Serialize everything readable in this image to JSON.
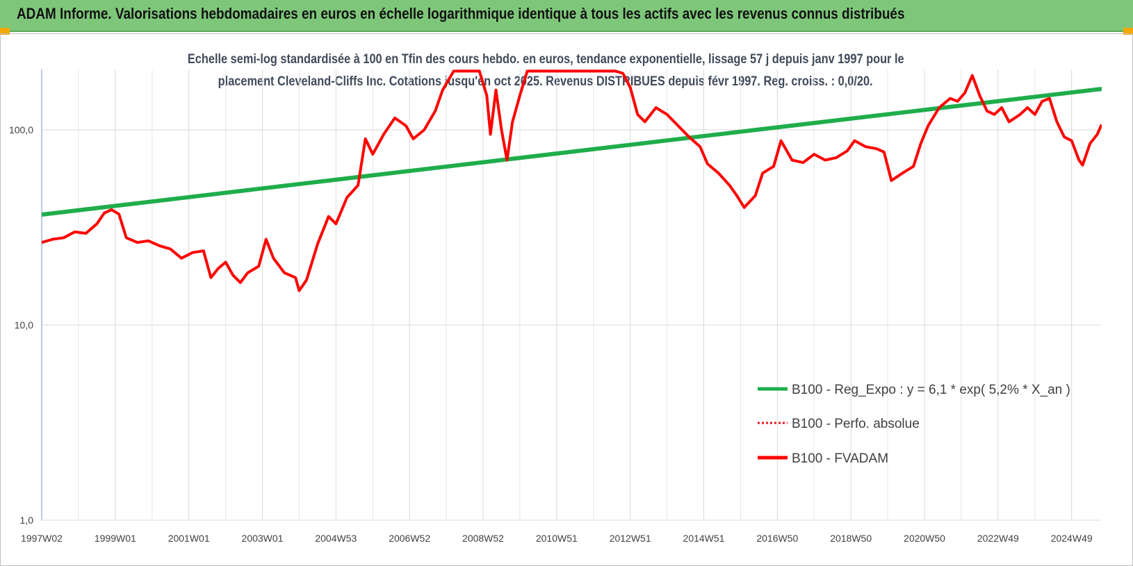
{
  "header": {
    "title": "ADAM Informe. Valorisations hebdomadaires en euros en échelle logarithmique identique à tous les actifs avec les revenus connus distribués"
  },
  "chart_data": {
    "type": "line",
    "title_line1": "Echelle semi-log standardisée à 100 en Tfin des cours hebdo. en euros, tendance exponentielle, lissage 57 j depuis janv 1997 pour le",
    "title_line2": "placement Cleveland-Cliffs Inc. Cotations jusqu'en oct 2025. Revenus DISTRIBUES depuis févr 1997. Reg. croiss. : 0,0/20.",
    "y_scale": "log",
    "ylim": [
      1,
      200
    ],
    "y_ticks": [
      {
        "value": 100,
        "label": "100,0"
      },
      {
        "value": 10,
        "label": "10,0"
      },
      {
        "value": 1,
        "label": "1,0"
      }
    ],
    "x_range": [
      1997.0,
      2025.8
    ],
    "x_ticks": [
      {
        "x": 1997.0,
        "label": "1997W02"
      },
      {
        "x": 1999.0,
        "label": "1999W01"
      },
      {
        "x": 2001.0,
        "label": "2001W01"
      },
      {
        "x": 2003.0,
        "label": "2003W01"
      },
      {
        "x": 2005.0,
        "label": "2004W53"
      },
      {
        "x": 2007.0,
        "label": "2006W52"
      },
      {
        "x": 2009.0,
        "label": "2008W52"
      },
      {
        "x": 2011.0,
        "label": "2010W51"
      },
      {
        "x": 2013.0,
        "label": "2012W51"
      },
      {
        "x": 2015.0,
        "label": "2014W51"
      },
      {
        "x": 2017.0,
        "label": "2016W50"
      },
      {
        "x": 2019.0,
        "label": "2018W50"
      },
      {
        "x": 2021.0,
        "label": "2020W50"
      },
      {
        "x": 2023.0,
        "label": "2022W49"
      },
      {
        "x": 2025.0,
        "label": "2024W49"
      }
    ],
    "grid": "vertical and horizontal",
    "legend_position": "right",
    "series": [
      {
        "name": "B100 - Reg_Expo : y = 6,1 * exp( 5,2% *  X_an )",
        "style": "solid",
        "color": "#1fad4b",
        "points": [
          [
            1997.0,
            36.8
          ],
          [
            2025.8,
            162.0
          ]
        ]
      },
      {
        "name": "B100 - Perfo. absolue",
        "style": "dotted",
        "color": "#e8141e",
        "points": []
      },
      {
        "name": "B100 - FVADAM",
        "style": "solid",
        "color": "#ff0000",
        "points": [
          [
            1997.0,
            26.5
          ],
          [
            1997.3,
            27.5
          ],
          [
            1997.6,
            28.0
          ],
          [
            1997.9,
            30.0
          ],
          [
            1998.2,
            29.5
          ],
          [
            1998.5,
            33.0
          ],
          [
            1998.7,
            37.5
          ],
          [
            1998.9,
            39.0
          ],
          [
            1999.1,
            37.0
          ],
          [
            1999.3,
            28.0
          ],
          [
            1999.6,
            26.5
          ],
          [
            1999.9,
            27.0
          ],
          [
            2000.2,
            25.5
          ],
          [
            2000.5,
            24.5
          ],
          [
            2000.8,
            22.0
          ],
          [
            2001.1,
            23.5
          ],
          [
            2001.4,
            24.0
          ],
          [
            2001.6,
            17.5
          ],
          [
            2001.8,
            19.5
          ],
          [
            2002.0,
            21.0
          ],
          [
            2002.2,
            18.0
          ],
          [
            2002.4,
            16.5
          ],
          [
            2002.6,
            18.5
          ],
          [
            2002.9,
            20.0
          ],
          [
            2003.1,
            27.5
          ],
          [
            2003.3,
            22.0
          ],
          [
            2003.6,
            18.5
          ],
          [
            2003.9,
            17.5
          ],
          [
            2004.0,
            15.0
          ],
          [
            2004.2,
            17.0
          ],
          [
            2004.5,
            26.0
          ],
          [
            2004.8,
            36.0
          ],
          [
            2005.0,
            33.0
          ],
          [
            2005.3,
            45.0
          ],
          [
            2005.6,
            52.0
          ],
          [
            2005.8,
            90.0
          ],
          [
            2006.0,
            75.0
          ],
          [
            2006.3,
            95.0
          ],
          [
            2006.6,
            115.0
          ],
          [
            2006.9,
            105.0
          ],
          [
            2007.1,
            90.0
          ],
          [
            2007.4,
            100.0
          ],
          [
            2007.7,
            125.0
          ],
          [
            2007.9,
            160.0
          ],
          [
            2008.2,
            200.0
          ],
          [
            2008.5,
            200.0
          ],
          [
            2008.9,
            200.0
          ],
          [
            2009.1,
            150.0
          ],
          [
            2009.2,
            95.0
          ],
          [
            2009.35,
            160.0
          ],
          [
            2009.5,
            100.0
          ],
          [
            2009.65,
            70.0
          ],
          [
            2009.8,
            110.0
          ],
          [
            2010.0,
            150.0
          ],
          [
            2010.2,
            200.0
          ],
          [
            2010.6,
            200.0
          ],
          [
            2012.6,
            200.0
          ],
          [
            2012.8,
            195.0
          ],
          [
            2013.0,
            165.0
          ],
          [
            2013.2,
            120.0
          ],
          [
            2013.4,
            110.0
          ],
          [
            2013.7,
            130.0
          ],
          [
            2014.0,
            120.0
          ],
          [
            2014.3,
            105.0
          ],
          [
            2014.6,
            92.0
          ],
          [
            2014.9,
            82.0
          ],
          [
            2015.1,
            67.0
          ],
          [
            2015.4,
            60.0
          ],
          [
            2015.7,
            52.0
          ],
          [
            2015.9,
            46.0
          ],
          [
            2016.1,
            40.0
          ],
          [
            2016.4,
            46.0
          ],
          [
            2016.6,
            60.0
          ],
          [
            2016.9,
            65.0
          ],
          [
            2017.1,
            88.0
          ],
          [
            2017.4,
            70.0
          ],
          [
            2017.7,
            68.0
          ],
          [
            2018.0,
            75.0
          ],
          [
            2018.3,
            70.0
          ],
          [
            2018.6,
            72.0
          ],
          [
            2018.9,
            78.0
          ],
          [
            2019.1,
            88.0
          ],
          [
            2019.4,
            82.0
          ],
          [
            2019.7,
            80.0
          ],
          [
            2019.9,
            77.0
          ],
          [
            2020.1,
            55.0
          ],
          [
            2020.4,
            60.0
          ],
          [
            2020.7,
            65.0
          ],
          [
            2020.9,
            85.0
          ],
          [
            2021.1,
            105.0
          ],
          [
            2021.4,
            130.0
          ],
          [
            2021.7,
            145.0
          ],
          [
            2021.9,
            140.0
          ],
          [
            2022.1,
            155.0
          ],
          [
            2022.3,
            190.0
          ],
          [
            2022.5,
            150.0
          ],
          [
            2022.7,
            125.0
          ],
          [
            2022.9,
            120.0
          ],
          [
            2023.1,
            130.0
          ],
          [
            2023.3,
            110.0
          ],
          [
            2023.6,
            120.0
          ],
          [
            2023.8,
            130.0
          ],
          [
            2024.0,
            120.0
          ],
          [
            2024.2,
            140.0
          ],
          [
            2024.4,
            145.0
          ],
          [
            2024.6,
            110.0
          ],
          [
            2024.8,
            92.0
          ],
          [
            2025.0,
            88.0
          ],
          [
            2025.2,
            70.0
          ],
          [
            2025.3,
            66.0
          ],
          [
            2025.5,
            85.0
          ],
          [
            2025.7,
            95.0
          ],
          [
            2025.8,
            105.0
          ]
        ]
      }
    ]
  }
}
